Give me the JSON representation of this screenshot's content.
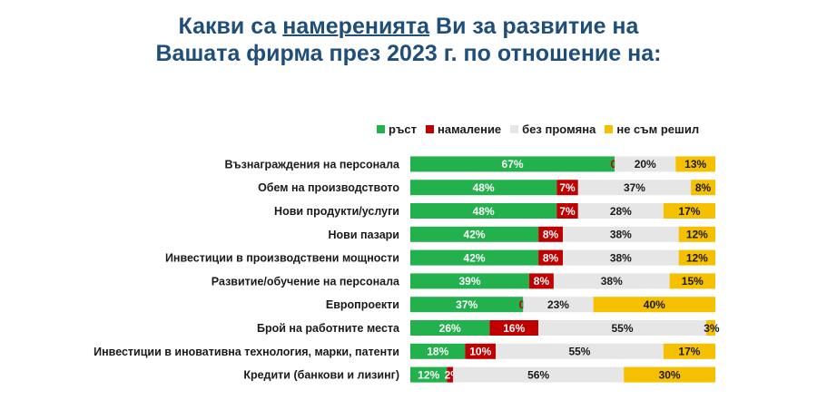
{
  "title": {
    "line1_pre": "Какви са ",
    "line1_underlined": "намеренията",
    "line1_post": " Ви за развитие на",
    "line2": "Вашата фирма през 2023 г. по отношение на:"
  },
  "colors": {
    "title": "#1f4e79",
    "green": "#22b14c",
    "red": "#c00000",
    "gray": "#e6e6e6",
    "yellow": "#f5c000"
  },
  "chart_data": {
    "type": "bar",
    "orientation": "horizontal",
    "stacked": true,
    "legend_position": "top-right",
    "categories": [
      "Възнаграждения на персонала",
      "Обем на производството",
      "Нови продукти/услуги",
      "Нови пазари",
      "Инвестиции в производствени мощности",
      "Развитие/обучение на персонала",
      "Европроекти",
      "Брой на работните места",
      "Инвестиции в иновативна технология, марки, патенти",
      "Кредити (банкови и лизинг)"
    ],
    "series": [
      {
        "name": "ръст",
        "color": "#22b14c",
        "values": [
          67,
          48,
          48,
          42,
          42,
          39,
          37,
          26,
          18,
          12
        ]
      },
      {
        "name": "намаление",
        "color": "#c00000",
        "values": [
          0,
          7,
          7,
          8,
          8,
          8,
          0,
          16,
          10,
          2
        ]
      },
      {
        "name": "без промяна",
        "color": "#e6e6e6",
        "values": [
          20,
          37,
          28,
          38,
          38,
          38,
          23,
          55,
          55,
          56
        ]
      },
      {
        "name": "не съм решил",
        "color": "#f5c000",
        "values": [
          13,
          8,
          17,
          12,
          12,
          15,
          40,
          3,
          17,
          30
        ]
      }
    ],
    "value_suffix": "%"
  }
}
